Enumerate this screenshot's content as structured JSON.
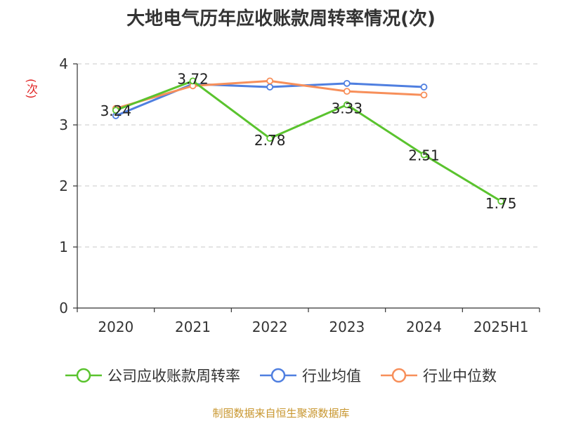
{
  "chart_data": {
    "type": "line",
    "title": "大地电气历年应收账款周转率情况(次)",
    "ylabel": "(次)",
    "xlabel": "",
    "categories": [
      "2020",
      "2021",
      "2022",
      "2023",
      "2024",
      "2025H1"
    ],
    "ylim": [
      0,
      4
    ],
    "yticks": [
      0,
      1,
      2,
      3,
      4
    ],
    "grid": true,
    "legend_position": "bottom",
    "series": [
      {
        "name": "公司应收账款周转率",
        "color": "#5ac32e",
        "values": [
          3.24,
          3.72,
          2.78,
          3.33,
          2.51,
          1.75
        ],
        "labels": [
          "3.24",
          "3.72",
          "2.78",
          "3.33",
          "2.51",
          "1.75"
        ]
      },
      {
        "name": "行业均值",
        "color": "#4f7fe0",
        "values": [
          3.15,
          3.67,
          3.62,
          3.68,
          3.62,
          null
        ]
      },
      {
        "name": "行业中位数",
        "color": "#f78f5a",
        "values": [
          3.27,
          3.64,
          3.72,
          3.55,
          3.49,
          null
        ]
      }
    ]
  },
  "source": "制图数据来自恒生聚源数据库"
}
